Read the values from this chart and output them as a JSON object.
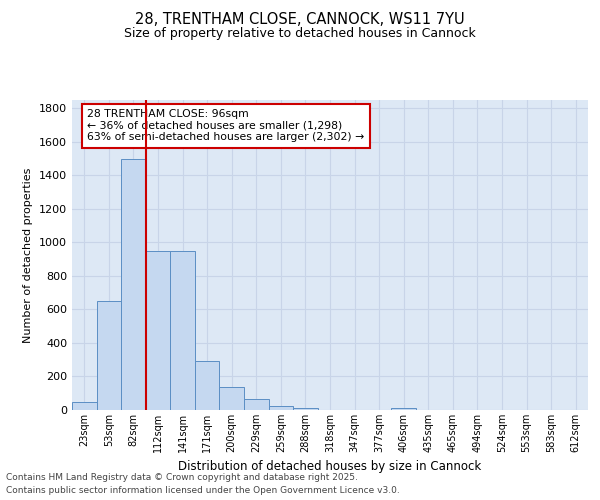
{
  "title1": "28, TRENTHAM CLOSE, CANNOCK, WS11 7YU",
  "title2": "Size of property relative to detached houses in Cannock",
  "xlabel": "Distribution of detached houses by size in Cannock",
  "ylabel": "Number of detached properties",
  "categories": [
    "23sqm",
    "53sqm",
    "82sqm",
    "112sqm",
    "141sqm",
    "171sqm",
    "200sqm",
    "229sqm",
    "259sqm",
    "288sqm",
    "318sqm",
    "347sqm",
    "377sqm",
    "406sqm",
    "435sqm",
    "465sqm",
    "494sqm",
    "524sqm",
    "553sqm",
    "583sqm",
    "612sqm"
  ],
  "values": [
    45,
    650,
    1500,
    950,
    950,
    295,
    135,
    65,
    25,
    10,
    0,
    0,
    0,
    10,
    0,
    0,
    0,
    0,
    0,
    0,
    0
  ],
  "bar_color": "#c5d8f0",
  "bar_edge_color": "#5b8ec4",
  "vline_x": 2.5,
  "vline_color": "#cc0000",
  "annotation_text": "28 TRENTHAM CLOSE: 96sqm\n← 36% of detached houses are smaller (1,298)\n63% of semi-detached houses are larger (2,302) →",
  "annotation_box_color": "#ffffff",
  "annotation_box_edge": "#cc0000",
  "ylim": [
    0,
    1850
  ],
  "yticks": [
    0,
    200,
    400,
    600,
    800,
    1000,
    1200,
    1400,
    1600,
    1800
  ],
  "bg_color": "#dde8f5",
  "grid_color": "#c8d4e8",
  "footer1": "Contains HM Land Registry data © Crown copyright and database right 2025.",
  "footer2": "Contains public sector information licensed under the Open Government Licence v3.0."
}
